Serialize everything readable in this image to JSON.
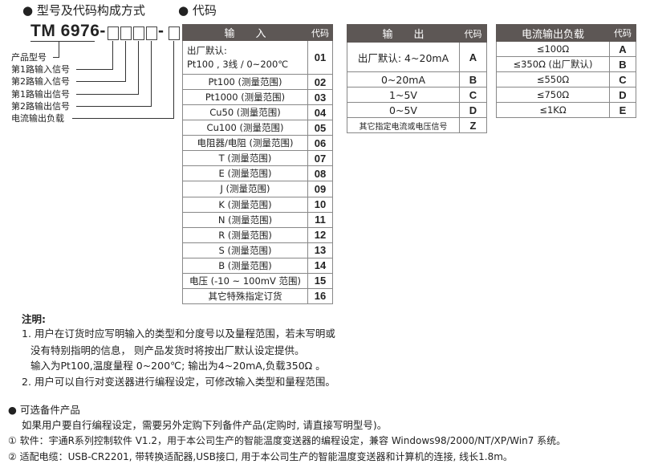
{
  "headings": {
    "model": "● 型号及代码构成方式",
    "code": "● 代码"
  },
  "model": {
    "prefix": "TM 6976-",
    "dash": "-",
    "labels": [
      "产品型号",
      "第1路输入信号",
      "第2路输入信号",
      "第1路输出信号",
      "第2路输出信号",
      "电流输出负载"
    ]
  },
  "input_table": {
    "header": "输　　入",
    "code_header": "代码",
    "rows": [
      {
        "label": "出厂默认:\nPt100 , 3线 / 0~200℃",
        "code": "01"
      },
      {
        "label": "Pt100  (测量范围)",
        "code": "02"
      },
      {
        "label": "Pt1000  (测量范围)",
        "code": "03"
      },
      {
        "label": "Cu50 (测量范围)",
        "code": "04"
      },
      {
        "label": "Cu100 (测量范围)",
        "code": "05"
      },
      {
        "label": "电阻器/电阻 (测量范围)",
        "code": "06"
      },
      {
        "label": "T (测量范围)",
        "code": "07"
      },
      {
        "label": "E (测量范围)",
        "code": "08"
      },
      {
        "label": "J (测量范围)",
        "code": "09"
      },
      {
        "label": "K (测量范围)",
        "code": "10"
      },
      {
        "label": "N (测量范围)",
        "code": "11"
      },
      {
        "label": "R (测量范围)",
        "code": "12"
      },
      {
        "label": "S (测量范围)",
        "code": "13"
      },
      {
        "label": "B (测量范围)",
        "code": "14"
      },
      {
        "label": "电压 (-10 ~ 100mV 范围)",
        "code": "15"
      },
      {
        "label": "其它特殊指定订货",
        "code": "16"
      }
    ]
  },
  "output_table": {
    "header": "输　　出",
    "code_header": "代码",
    "rows": [
      {
        "label": "出厂默认: 4~20mA",
        "code": "A"
      },
      {
        "label": "0~20mA",
        "code": "B"
      },
      {
        "label": "1~5V",
        "code": "C"
      },
      {
        "label": "0~5V",
        "code": "D"
      },
      {
        "label": "其它指定电流或电压信号",
        "code": "Z"
      }
    ]
  },
  "load_table": {
    "header": "电流输出负载",
    "code_header": "代码",
    "rows": [
      {
        "label": "≤100Ω",
        "code": "A"
      },
      {
        "label": "≤350Ω (出厂默认)",
        "code": "B"
      },
      {
        "label": "≤550Ω",
        "code": "C"
      },
      {
        "label": "≤750Ω",
        "code": "D"
      },
      {
        "label": "≤1KΩ",
        "code": "E"
      }
    ]
  },
  "notes": {
    "title": "注明:",
    "lines": [
      "1. 用户在订货时应写明输入的类型和分度号以及量程范围，若未写明或",
      "没有特别指明的信息， 则产品发货时将按出厂默认设定提供。",
      "输入为Pt100,温度量程 0~200℃; 输出为4~20mA,负载350Ω 。",
      "2. 用户可以自行对变送器进行编程设定，可修改输入类型和量程范围。"
    ]
  },
  "accessories": {
    "title": "● 可选备件产品",
    "intro": "如果用户要自行编程设定，需要另外定购下列备件产品(定购时, 请直接写明型号)。",
    "items": [
      "① 软件：宇通R系列控制软件 V1.2，用于本公司生产的智能温度变送器的编程设定，兼容 Windows98/2000/NT/XP/Win7 系统。",
      "② 适配电缆：USB-CR2201, 带转换适配器,USB接口, 用于本公司生产的智能温度变送器和计算机的连接, 线长1.8m。"
    ]
  }
}
